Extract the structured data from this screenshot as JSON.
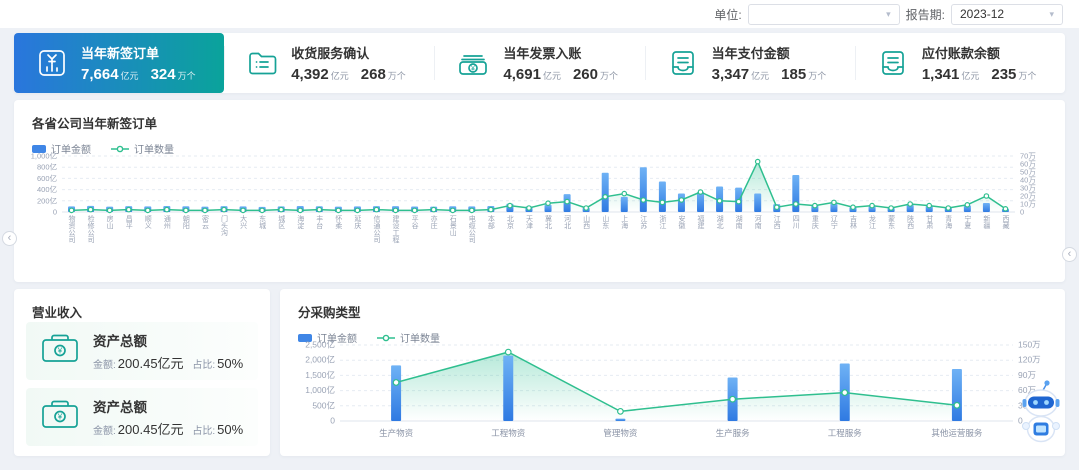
{
  "header": {
    "unit_label": "单位:",
    "unit_value": "",
    "period_label": "报告期:",
    "period_value": "2023-12",
    "dropdown_arrow": "▾"
  },
  "units": {
    "amount": "亿元",
    "count": "万个"
  },
  "kpis": [
    {
      "title": "当年新签订单",
      "amount": "7,664",
      "count": "324",
      "icon": "yuan-bar-chart-icon"
    },
    {
      "title": "收货服务确认",
      "amount": "4,392",
      "count": "268",
      "icon": "folder-list-icon"
    },
    {
      "title": "当年发票入账",
      "amount": "4,691",
      "count": "260",
      "icon": "banknotes-icon"
    },
    {
      "title": "当年支付金额",
      "amount": "3,347",
      "count": "185",
      "icon": "document-tray-icon"
    },
    {
      "title": "应付账款余额",
      "amount": "1,341",
      "count": "235",
      "icon": "document-tray-icon"
    }
  ],
  "revenue_panel": {
    "title": "营业收入",
    "cards": [
      {
        "title": "资产总额",
        "amount_label": "金额:",
        "amount": "200.45亿元",
        "ratio_label": "占比:",
        "ratio": "50%"
      },
      {
        "title": "资产总额",
        "amount_label": "金额:",
        "amount": "200.45亿元",
        "ratio_label": "占比:",
        "ratio": "50%"
      }
    ]
  },
  "nav": {
    "left_arrow": "‹",
    "right_arrow": "‹"
  },
  "colors": {
    "bar_blue": "#3f86e6",
    "line_green": "#2fbf8f",
    "teal_icon": "#16a296",
    "kpi_gradient_start": "#2a76dd",
    "kpi_gradient_end": "#0aa39b"
  },
  "chart_data": [
    {
      "id": "province_orders",
      "type": "bar",
      "combo": "bar+line",
      "title": "各省公司当年新签订单",
      "legend": [
        {
          "name": "订单金额",
          "type": "bar",
          "color": "#3f86e6"
        },
        {
          "name": "订单数量",
          "type": "line",
          "color": "#2fbf8f"
        }
      ],
      "categories": [
        "物资公司",
        "检修公司",
        "房山",
        "昌平",
        "顺义",
        "通州",
        "朝阳",
        "密云",
        "门头沟",
        "大兴",
        "东城",
        "城区",
        "海淀",
        "丰台",
        "怀柔",
        "延庆",
        "信通公司",
        "建设工程",
        "平谷",
        "亦庄",
        "石景山",
        "电缆公司",
        "本部",
        "北京",
        "天津",
        "冀北",
        "河北",
        "山西",
        "山东",
        "上海",
        "江苏",
        "浙江",
        "安徽",
        "福建",
        "湖北",
        "湖南",
        "河南",
        "江西",
        "四川",
        "重庆",
        "辽宁",
        "吉林",
        "龙江",
        "蒙东",
        "陕西",
        "甘肃",
        "青海",
        "宁夏",
        "新疆",
        "西藏"
      ],
      "series": [
        {
          "name": "订单金额",
          "axis": "left",
          "unit": "亿元",
          "values": [
            100,
            110,
            95,
            105,
            100,
            108,
            102,
            96,
            104,
            100,
            92,
            101,
            107,
            103,
            97,
            100,
            106,
            104,
            98,
            95,
            103,
            100,
            108,
            150,
            100,
            130,
            320,
            80,
            700,
            270,
            800,
            545,
            330,
            360,
            455,
            435,
            330,
            140,
            660,
            120,
            150,
            90,
            100,
            80,
            130,
            110,
            90,
            120,
            160,
            60
          ]
        },
        {
          "name": "订单数量",
          "axis": "right",
          "unit": "万个",
          "values": [
            2,
            3,
            2,
            3,
            2,
            3,
            2,
            2,
            3,
            2,
            2,
            3,
            2,
            3,
            2,
            2,
            3,
            2,
            2,
            3,
            2,
            2,
            3,
            8,
            5,
            11,
            13,
            5,
            19,
            23,
            15,
            12,
            15,
            25,
            14,
            13,
            63,
            6,
            10,
            8,
            12,
            6,
            8,
            5,
            10,
            8,
            5,
            9,
            20,
            4
          ]
        }
      ],
      "left_axis": {
        "max": 1000,
        "step": 200,
        "suffix": "亿",
        "labels": [
          "0",
          "200亿",
          "400亿",
          "600亿",
          "800亿",
          "1,000亿"
        ]
      },
      "right_axis": {
        "max": 70,
        "step": 10,
        "suffix": "万",
        "labels": [
          "0",
          "10万",
          "20万",
          "30万",
          "40万",
          "50万",
          "60万",
          "70万"
        ]
      },
      "grid": true,
      "legend_position": "top-left"
    },
    {
      "id": "purchase_type",
      "type": "bar",
      "combo": "bar+line",
      "title": "分采购类型",
      "legend": [
        {
          "name": "订单金额",
          "type": "bar",
          "color": "#3f86e6"
        },
        {
          "name": "订单数量",
          "type": "line",
          "color": "#2fbf8f"
        }
      ],
      "categories": [
        "生产物资",
        "工程物资",
        "管理物资",
        "生产服务",
        "工程服务",
        "其他运营服务"
      ],
      "series": [
        {
          "name": "订单金额",
          "axis": "left",
          "unit": "亿元",
          "values": [
            1830,
            2150,
            80,
            1430,
            1890,
            1710
          ]
        },
        {
          "name": "订单数量",
          "axis": "right",
          "unit": "万个",
          "values": [
            76,
            136,
            19,
            43,
            56,
            31
          ]
        }
      ],
      "left_axis": {
        "max": 2500,
        "step": 500,
        "suffix": "亿",
        "labels": [
          "0",
          "500亿",
          "1,000亿",
          "1,500亿",
          "2,000亿",
          "2,500亿"
        ]
      },
      "right_axis": {
        "max": 150,
        "step": 30,
        "suffix": "万",
        "labels": [
          "0",
          "30万",
          "60万",
          "90万",
          "120万",
          "150万"
        ]
      },
      "grid": true,
      "legend_position": "top-left"
    }
  ]
}
